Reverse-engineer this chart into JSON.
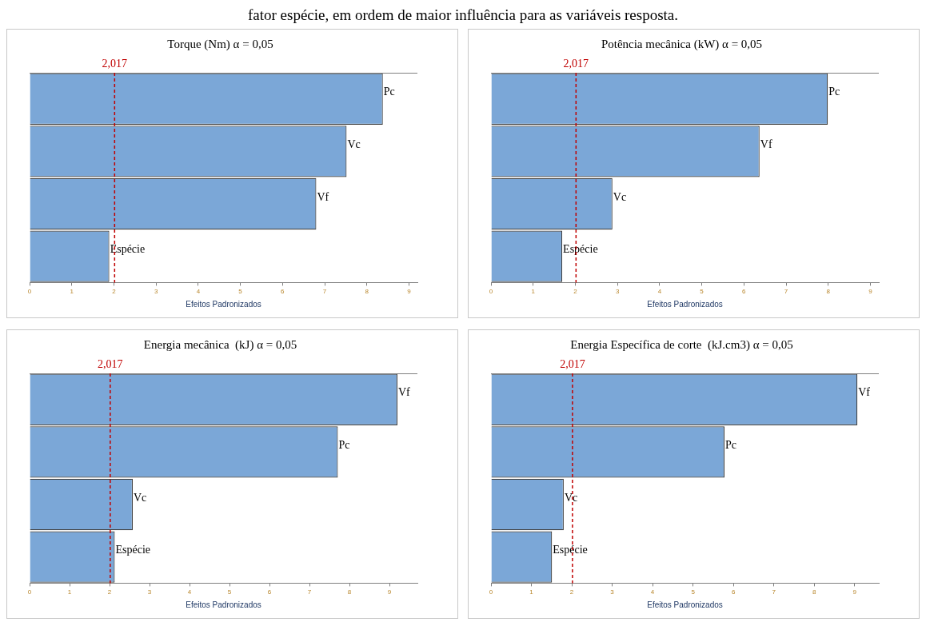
{
  "chart_data": [
    {
      "type": "bar",
      "orientation": "horizontal",
      "title": "Torque (Nm) α = 0,05",
      "xlabel": "Efeitos Padronizados",
      "categories": [
        "Pc",
        "Vc",
        "Vf",
        "Espécie"
      ],
      "values": [
        8.38,
        7.52,
        6.8,
        1.89
      ],
      "color": "#7ba7d7",
      "xlim": [
        0,
        9.2
      ],
      "xticks": [
        0,
        1,
        2,
        3,
        4,
        5,
        6,
        7,
        8,
        9
      ],
      "ref_lines": [
        {
          "axis": "x",
          "value": 2.017,
          "label": "2,017",
          "color": "#c00000",
          "line_style": "dashed"
        }
      ],
      "grid": false,
      "legend": false,
      "annotations": [
        "fator espécie, em ordem de maior influência para as variáveis resposta."
      ]
    },
    {
      "type": "bar",
      "orientation": "horizontal",
      "title": "Potência mecânica (kW) α = 0,05",
      "xlabel": "Efeitos Padronizados",
      "categories": [
        "Pc",
        "Vf",
        "Vc",
        "Espécie"
      ],
      "values": [
        7.99,
        6.37,
        2.88,
        1.69
      ],
      "color": "#7ba7d7",
      "xlim": [
        0,
        9.2
      ],
      "xticks": [
        0,
        1,
        2,
        3,
        4,
        5,
        6,
        7,
        8,
        9
      ],
      "ref_lines": [
        {
          "axis": "x",
          "value": 2.017,
          "label": "2,017",
          "color": "#c00000",
          "line_style": "dashed"
        }
      ],
      "grid": false,
      "legend": false
    },
    {
      "type": "bar",
      "orientation": "horizontal",
      "title": "Energia mecânica  (kJ) α = 0,05",
      "xlabel": "Efeitos Padronizados",
      "categories": [
        "Vf",
        "Pc",
        "Vc",
        "Espécie"
      ],
      "values": [
        9.2,
        7.71,
        2.58,
        2.13
      ],
      "color": "#7ba7d7",
      "xlim": [
        0,
        9.7
      ],
      "xticks": [
        0,
        1,
        2,
        3,
        4,
        5,
        6,
        7,
        8,
        9
      ],
      "ref_lines": [
        {
          "axis": "x",
          "value": 2.017,
          "label": "2,017",
          "color": "#c00000",
          "line_style": "dashed"
        }
      ],
      "grid": false,
      "legend": false
    },
    {
      "type": "bar",
      "orientation": "horizontal",
      "title": "Energia Específica de corte  (kJ.cm3) α = 0,05",
      "xlabel": "Efeitos Padronizados",
      "categories": [
        "Vf",
        "Pc",
        "Vc",
        "Espécie"
      ],
      "values": [
        9.07,
        5.78,
        1.8,
        1.51
      ],
      "color": "#7ba7d7",
      "xlim": [
        0,
        9.6
      ],
      "xticks": [
        0,
        1,
        2,
        3,
        4,
        5,
        6,
        7,
        8,
        9
      ],
      "ref_lines": [
        {
          "axis": "x",
          "value": 2.017,
          "label": "2,017",
          "color": "#c00000",
          "line_style": "dashed"
        }
      ],
      "grid": false,
      "legend": false
    }
  ]
}
